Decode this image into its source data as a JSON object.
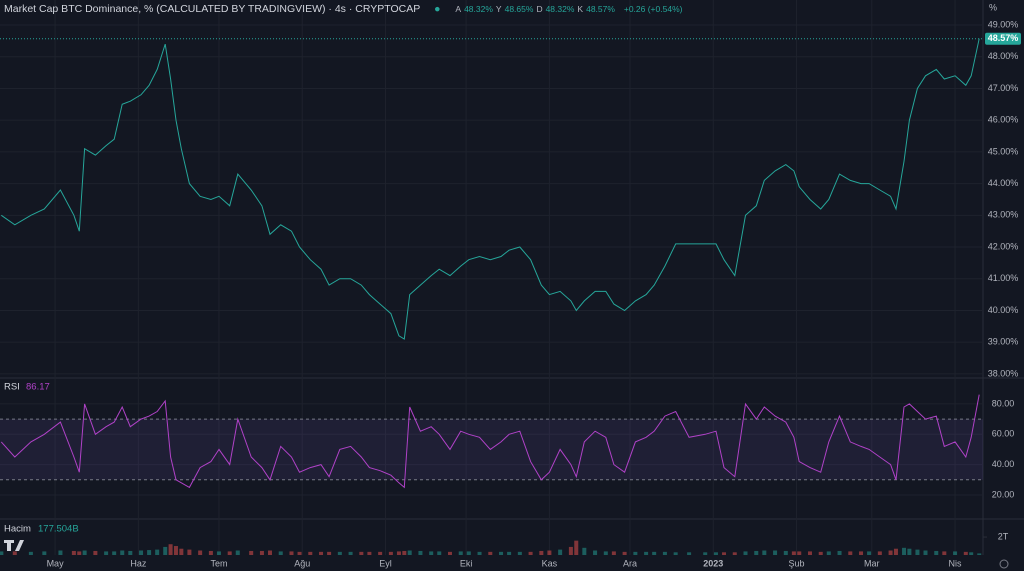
{
  "header": {
    "title": "Market Cap BTC Dominance, % (CALCULATED BY TRADINGVIEW) · 4s · CRYPTOCAP",
    "unit": "%",
    "ohlc": [
      {
        "key": "A",
        "value": "48.32%"
      },
      {
        "key": "Y",
        "value": "48.65%"
      },
      {
        "key": "D",
        "value": "48.32%"
      },
      {
        "key": "K",
        "value": "48.57%"
      }
    ],
    "change": "+0.26 (+0.54%)"
  },
  "chart_data": [
    {
      "type": "line",
      "color": "#26a69a",
      "last_label": "48.57%",
      "grid": true,
      "xlim": [
        9.5,
        375.4
      ],
      "ylim": [
        37.87,
        49.79
      ],
      "xticks": [
        {
          "value": 30,
          "label": "May"
        },
        {
          "value": 61,
          "label": "Haz"
        },
        {
          "value": 91,
          "label": "Tem"
        },
        {
          "value": 122,
          "label": "Ağu"
        },
        {
          "value": 153,
          "label": "Eyl"
        },
        {
          "value": 183,
          "label": "Eki"
        },
        {
          "value": 214,
          "label": "Kas"
        },
        {
          "value": 244,
          "label": "Ara"
        },
        {
          "value": 275,
          "label": "2023"
        },
        {
          "value": 306,
          "label": "Şub"
        },
        {
          "value": 334,
          "label": "Mar"
        },
        {
          "value": 365,
          "label": "Nis"
        }
      ],
      "yticks": [
        {
          "value": 38,
          "label": "38.00%"
        },
        {
          "value": 39,
          "label": "39.00%"
        },
        {
          "value": 40,
          "label": "40.00%"
        },
        {
          "value": 41,
          "label": "41.00%"
        },
        {
          "value": 42,
          "label": "42.00%"
        },
        {
          "value": 43,
          "label": "43.00%"
        },
        {
          "value": 44,
          "label": "44.00%"
        },
        {
          "value": 45,
          "label": "45.00%"
        },
        {
          "value": 46,
          "label": "46.00%"
        },
        {
          "value": 47,
          "label": "47.00%"
        },
        {
          "value": 48,
          "label": "48.00%"
        },
        {
          "value": 49,
          "label": "49.00%"
        }
      ],
      "x": [
        10,
        15,
        21,
        26,
        32,
        37,
        39,
        41,
        45,
        49,
        52,
        55,
        58,
        62,
        65,
        68,
        71,
        73,
        75,
        77,
        80,
        84,
        88,
        91,
        95,
        98,
        103,
        107,
        110,
        114,
        118,
        121,
        125,
        129,
        132,
        136,
        140,
        144,
        147,
        151,
        155,
        158,
        160,
        162,
        166,
        170,
        173,
        177,
        181,
        184,
        188,
        192,
        196,
        199,
        203,
        207,
        211,
        214,
        218,
        222,
        224,
        227,
        231,
        235,
        238,
        242,
        246,
        250,
        253,
        257,
        261,
        266,
        272,
        276,
        279,
        283,
        287,
        291,
        294,
        298,
        302,
        305,
        307,
        311,
        315,
        318,
        322,
        326,
        330,
        333,
        337,
        341,
        343,
        346,
        348,
        351,
        354,
        358,
        361,
        365,
        369,
        371,
        374
      ],
      "values": [
        43.0,
        42.7,
        43.0,
        43.2,
        43.8,
        43.0,
        42.5,
        45.1,
        44.9,
        45.2,
        45.4,
        46.5,
        46.6,
        46.8,
        47.1,
        47.6,
        48.4,
        47.3,
        46.0,
        45.1,
        44.0,
        43.6,
        43.5,
        43.6,
        43.3,
        44.3,
        43.8,
        43.3,
        42.4,
        42.7,
        42.5,
        42.0,
        41.6,
        41.3,
        40.8,
        41.0,
        41.0,
        40.8,
        40.5,
        40.2,
        39.9,
        39.2,
        39.1,
        40.5,
        40.8,
        41.1,
        41.3,
        41.1,
        41.4,
        41.6,
        41.7,
        41.6,
        41.7,
        41.9,
        42.0,
        41.6,
        40.8,
        40.5,
        40.6,
        40.3,
        40.0,
        40.3,
        40.6,
        40.6,
        40.2,
        40.0,
        40.3,
        40.5,
        40.8,
        41.4,
        42.1,
        42.1,
        42.1,
        42.1,
        41.6,
        41.1,
        43.0,
        43.3,
        44.1,
        44.4,
        44.6,
        44.4,
        43.9,
        43.5,
        43.2,
        43.5,
        44.3,
        44.1,
        44.0,
        44.0,
        43.8,
        43.6,
        43.2,
        44.7,
        46.0,
        47.0,
        47.4,
        47.6,
        47.3,
        47.4,
        47.1,
        47.4,
        48.57
      ]
    },
    {
      "type": "line",
      "name": "RSI",
      "color": "#b042c8",
      "bands": [
        70,
        30
      ],
      "xlim": [
        9.5,
        375.4
      ],
      "ylim": [
        4.8,
        97.1
      ],
      "yticks": [
        {
          "value": 20,
          "label": "20.00"
        },
        {
          "value": 40,
          "label": "40.00"
        },
        {
          "value": 60,
          "label": "60.00"
        },
        {
          "value": 80,
          "label": "80.00"
        }
      ],
      "x": [
        10,
        15,
        21,
        26,
        32,
        37,
        39,
        41,
        45,
        49,
        52,
        55,
        58,
        62,
        65,
        68,
        71,
        73,
        75,
        77,
        80,
        84,
        88,
        91,
        95,
        98,
        103,
        107,
        110,
        114,
        118,
        121,
        125,
        129,
        132,
        136,
        140,
        144,
        147,
        151,
        155,
        158,
        160,
        162,
        166,
        170,
        173,
        177,
        181,
        184,
        188,
        192,
        196,
        199,
        203,
        207,
        211,
        214,
        218,
        222,
        224,
        227,
        231,
        235,
        238,
        242,
        246,
        250,
        253,
        257,
        261,
        266,
        272,
        276,
        279,
        283,
        287,
        291,
        294,
        298,
        302,
        305,
        307,
        311,
        315,
        318,
        322,
        326,
        330,
        333,
        337,
        341,
        343,
        346,
        348,
        351,
        354,
        358,
        361,
        365,
        369,
        371,
        374
      ],
      "values": [
        55,
        45,
        55,
        60,
        68,
        45,
        35,
        80,
        60,
        65,
        68,
        78,
        65,
        70,
        72,
        75,
        82,
        45,
        30,
        28,
        25,
        38,
        42,
        50,
        40,
        70,
        45,
        38,
        30,
        52,
        45,
        35,
        38,
        40,
        32,
        50,
        52,
        45,
        38,
        36,
        33,
        28,
        25,
        78,
        62,
        65,
        60,
        50,
        62,
        60,
        58,
        50,
        55,
        60,
        62,
        42,
        30,
        35,
        50,
        40,
        32,
        55,
        62,
        58,
        40,
        35,
        55,
        58,
        62,
        72,
        75,
        58,
        60,
        62,
        38,
        32,
        80,
        70,
        78,
        72,
        68,
        58,
        42,
        38,
        35,
        55,
        72,
        55,
        52,
        50,
        45,
        40,
        30,
        78,
        80,
        75,
        70,
        72,
        52,
        55,
        45,
        58,
        86.17
      ]
    },
    {
      "type": "bar",
      "name": "Hacim",
      "last_label": "177.504B",
      "up_color": "#26a69a",
      "down_color": "#ef5350",
      "xlim": [
        9.5,
        375.4
      ],
      "ylim": [
        0,
        3900000000000.0
      ],
      "yticks": [
        {
          "value": 2000000000000.0,
          "label": "2T"
        }
      ],
      "x": [
        10,
        15,
        21,
        26,
        32,
        37,
        39,
        41,
        45,
        49,
        52,
        55,
        58,
        62,
        65,
        68,
        71,
        73,
        75,
        77,
        80,
        84,
        88,
        91,
        95,
        98,
        103,
        107,
        110,
        114,
        118,
        121,
        125,
        129,
        132,
        136,
        140,
        144,
        147,
        151,
        155,
        158,
        160,
        162,
        166,
        170,
        173,
        177,
        181,
        184,
        188,
        192,
        196,
        199,
        203,
        207,
        211,
        214,
        218,
        222,
        224,
        227,
        231,
        235,
        238,
        242,
        246,
        250,
        253,
        257,
        261,
        266,
        272,
        276,
        279,
        283,
        287,
        291,
        294,
        298,
        302,
        305,
        307,
        311,
        315,
        318,
        322,
        326,
        330,
        333,
        337,
        341,
        343,
        346,
        348,
        351,
        354,
        358,
        361,
        365,
        369,
        371,
        374
      ],
      "values": [
        400000000000.0,
        400000000000.0,
        350000000000.0,
        400000000000.0,
        500000000000.0,
        450000000000.0,
        400000000000.0,
        500000000000.0,
        450000000000.0,
        400000000000.0,
        400000000000.0,
        500000000000.0,
        450000000000.0,
        500000000000.0,
        550000000000.0,
        600000000000.0,
        900000000000.0,
        1200000000000.0,
        1000000000000.0,
        700000000000.0,
        600000000000.0,
        500000000000.0,
        450000000000.0,
        400000000000.0,
        400000000000.0,
        500000000000.0,
        450000000000.0,
        450000000000.0,
        500000000000.0,
        400000000000.0,
        400000000000.0,
        350000000000.0,
        350000000000.0,
        350000000000.0,
        350000000000.0,
        350000000000.0,
        350000000000.0,
        350000000000.0,
        350000000000.0,
        350000000000.0,
        350000000000.0,
        400000000000.0,
        450000000000.0,
        500000000000.0,
        450000000000.0,
        400000000000.0,
        400000000000.0,
        350000000000.0,
        400000000000.0,
        400000000000.0,
        350000000000.0,
        350000000000.0,
        350000000000.0,
        350000000000.0,
        350000000000.0,
        350000000000.0,
        450000000000.0,
        500000000000.0,
        600000000000.0,
        900000000000.0,
        1600000000000.0,
        800000000000.0,
        500000000000.0,
        400000000000.0,
        400000000000.0,
        350000000000.0,
        350000000000.0,
        350000000000.0,
        350000000000.0,
        350000000000.0,
        300000000000.0,
        300000000000.0,
        300000000000.0,
        300000000000.0,
        300000000000.0,
        300000000000.0,
        400000000000.0,
        450000000000.0,
        500000000000.0,
        500000000000.0,
        450000000000.0,
        400000000000.0,
        400000000000.0,
        400000000000.0,
        350000000000.0,
        400000000000.0,
        450000000000.0,
        400000000000.0,
        400000000000.0,
        400000000000.0,
        400000000000.0,
        500000000000.0,
        700000000000.0,
        800000000000.0,
        700000000000.0,
        600000000000.0,
        500000000000.0,
        450000000000.0,
        400000000000.0,
        400000000000.0,
        350000000000.0,
        300000000000.0,
        177504000000.0
      ]
    }
  ]
}
